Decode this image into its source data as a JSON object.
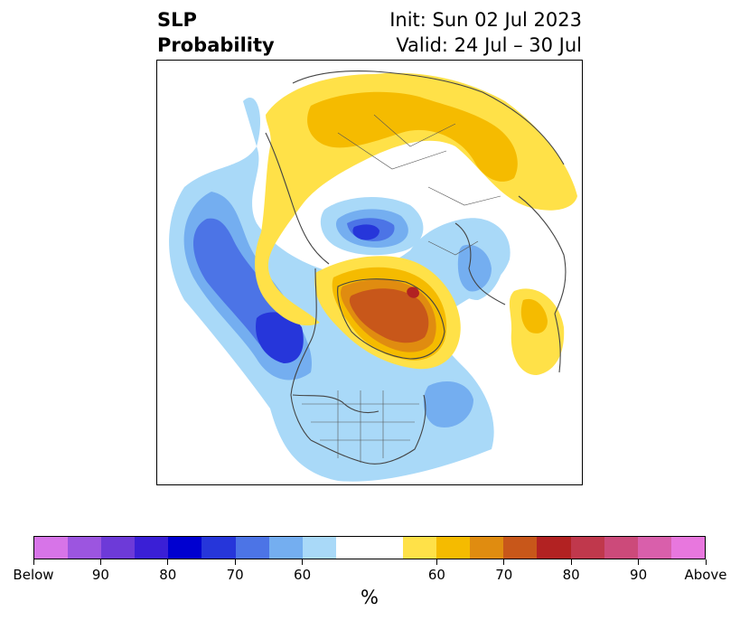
{
  "title": {
    "left_line1": "SLP",
    "left_line2": "Probability",
    "right_line1": "Init: Sun 02 Jul 2023",
    "right_line2": "Valid: 24 Jul – 30 Jul"
  },
  "colorbar": {
    "units": "%",
    "tick_labels": [
      "Below",
      "90",
      "80",
      "70",
      "60",
      "60",
      "70",
      "80",
      "90",
      "Above"
    ],
    "colors": [
      "#d774e8",
      "#9c55e0",
      "#6d3ad8",
      "#3a1fd6",
      "#0000d0",
      "#2636da",
      "#4c74e6",
      "#74aef0",
      "#a9d9f8",
      "#ffffff",
      "#ffe148",
      "#f5bb00",
      "#e08c10",
      "#c8571a",
      "#b22222",
      "#c0384c",
      "#cc4a7a",
      "#d95fab",
      "#e877de"
    ]
  },
  "map": {
    "colors": {
      "blue_light": "#a9d9f8",
      "blue_mid": "#74aef0",
      "blue_med2": "#4c74e6",
      "blue_dark": "#2636da",
      "yellow": "#ffe148",
      "gold": "#f5bb00",
      "orange": "#e08c10",
      "brown": "#c8571a",
      "red": "#b22222",
      "land_outline": "#444444"
    }
  }
}
